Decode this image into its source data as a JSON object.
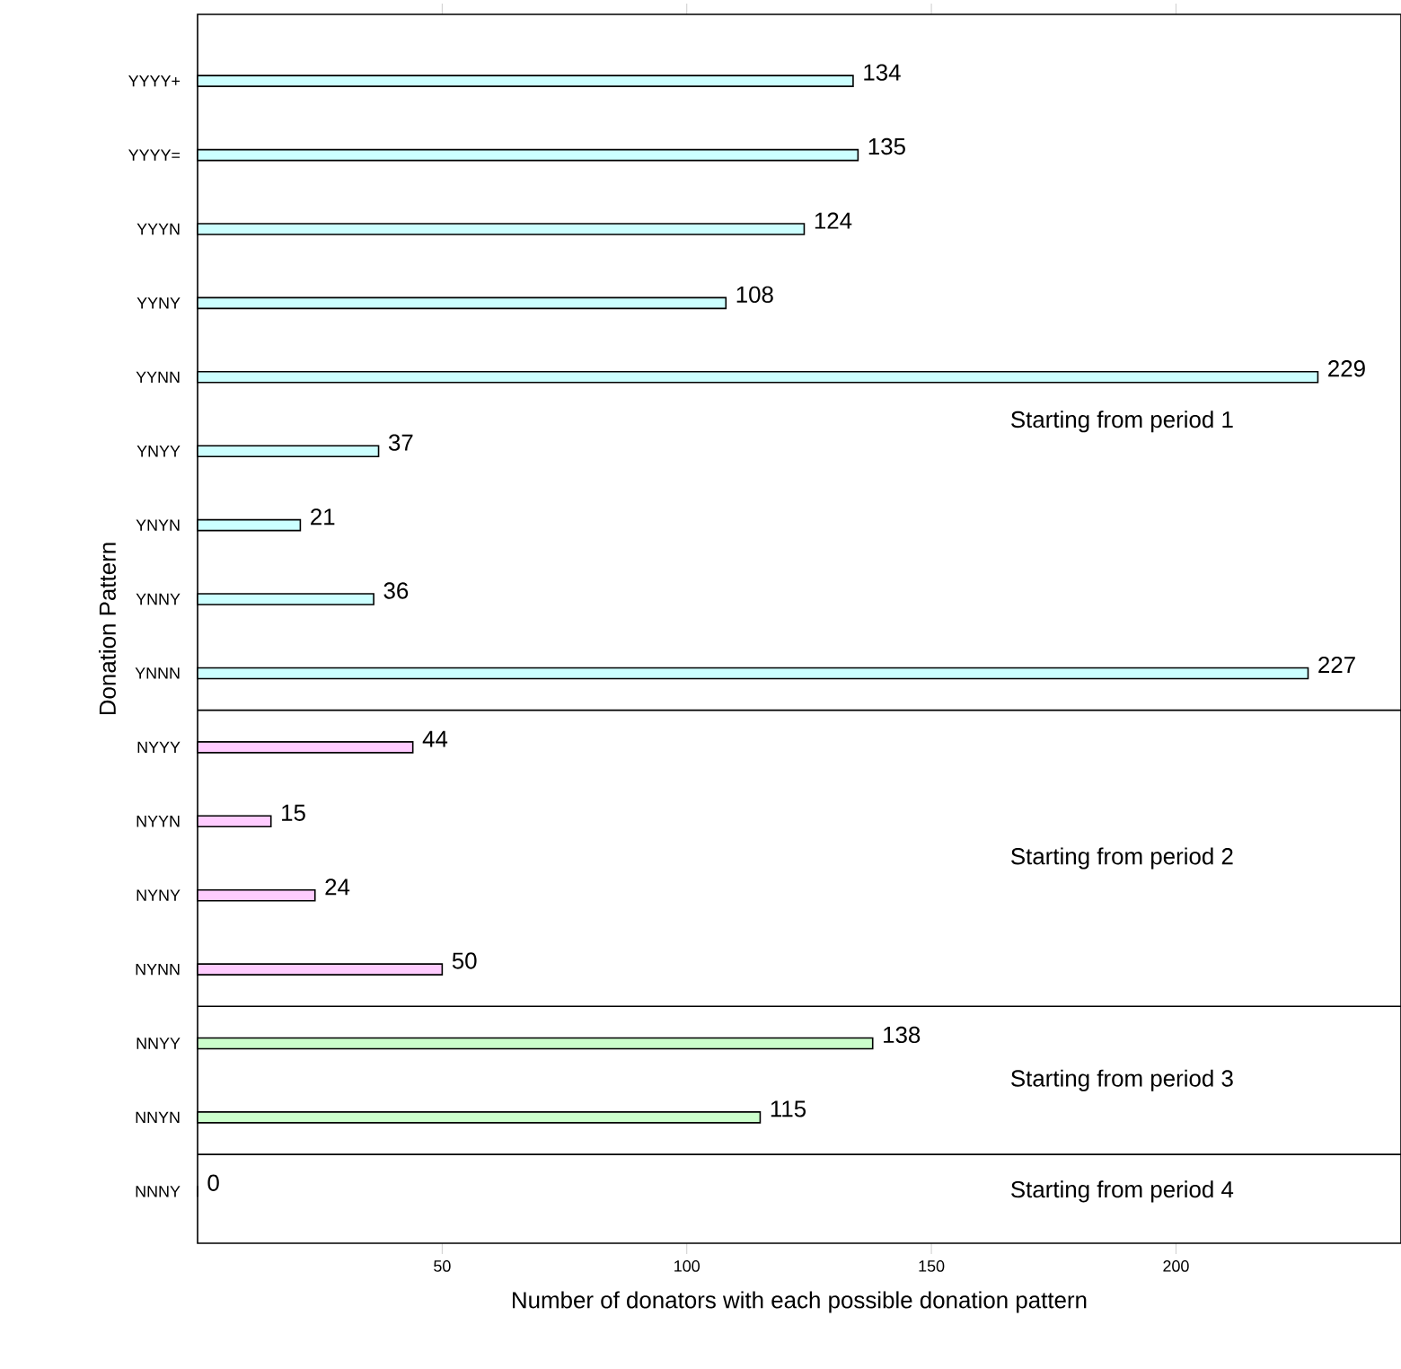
{
  "chart_data": {
    "type": "bar",
    "orientation": "horizontal",
    "xlabel": "Number of donators with each possible donation pattern",
    "ylabel": "Donation Pattern",
    "categories": [
      "YYYY+",
      "YYYY=",
      "YYYN",
      "YYNY",
      "YYNN",
      "YNYY",
      "YNYN",
      "YNNY",
      "YNNN",
      "NYYY",
      "NYYN",
      "NYNY",
      "NYNN",
      "NNYY",
      "NNYN",
      "NNNY"
    ],
    "values": [
      134,
      135,
      124,
      108,
      229,
      37,
      21,
      36,
      227,
      44,
      15,
      24,
      50,
      138,
      115,
      0
    ],
    "colors": [
      "#ccffff",
      "#ccffff",
      "#ccffff",
      "#ccffff",
      "#ccffff",
      "#ccffff",
      "#ccffff",
      "#ccffff",
      "#ccffff",
      "#ffccff",
      "#ffccff",
      "#ffccff",
      "#ffccff",
      "#ccffcc",
      "#ccffcc",
      "#ffe5cc"
    ],
    "data_labels": true,
    "xlim": [
      0,
      246
    ],
    "xticks": [
      50,
      100,
      150,
      200
    ],
    "annotations": [
      "Starting from period 1",
      "Starting from period 2",
      "Starting from period 3",
      "Starting from period 4"
    ]
  }
}
